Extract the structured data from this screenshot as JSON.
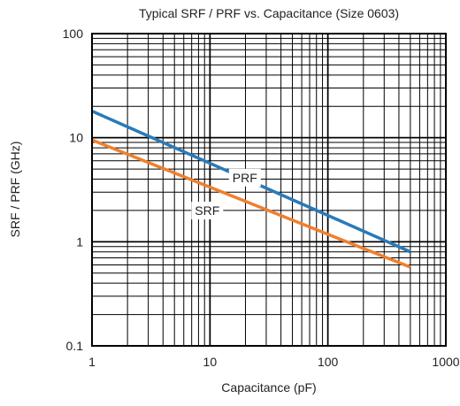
{
  "chart_data": {
    "type": "line",
    "title": "Typical SRF / PRF vs. Capacitance (Size 0603)",
    "xlabel": "Capacitance (pF)",
    "ylabel": "SRF / PRF (GHz)",
    "x_scale": "log",
    "y_scale": "log",
    "xlim": [
      1,
      1000
    ],
    "ylim": [
      0.1,
      100
    ],
    "x_ticks": [
      "1",
      "10",
      "100",
      "1000"
    ],
    "y_ticks": [
      "0.1",
      "1",
      "10",
      "100"
    ],
    "grid": true,
    "legend": "none",
    "series": [
      {
        "name": "PRF",
        "color": "#2a7ab8",
        "x": [
          1,
          500
        ],
        "y": [
          18,
          0.8
        ]
      },
      {
        "name": "SRF",
        "color": "#f07f2e",
        "x": [
          1,
          500
        ],
        "y": [
          9.5,
          0.57
        ]
      }
    ]
  }
}
